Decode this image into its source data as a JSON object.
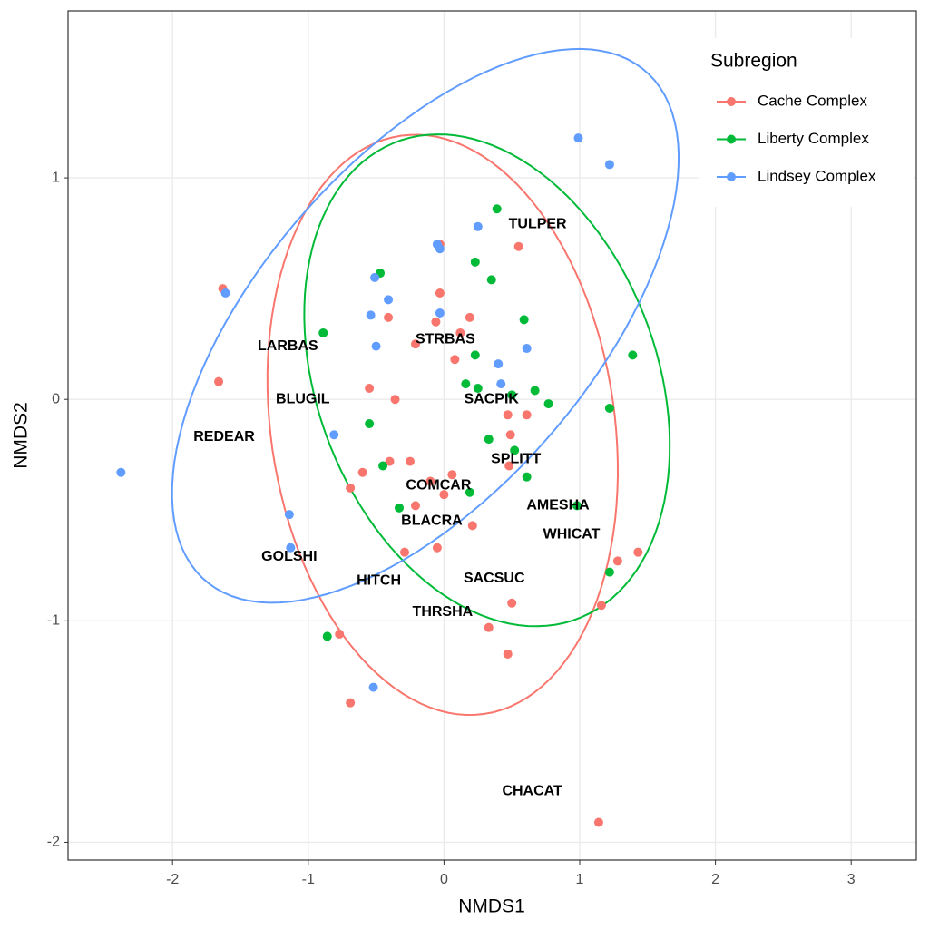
{
  "chart_data": {
    "type": "scatter",
    "x_label": "NMDS1",
    "y_label": "NMDS2",
    "xlim": [
      -2.77,
      3.48
    ],
    "ylim": [
      -2.08,
      1.754
    ],
    "xticks": [
      -2,
      -1,
      0,
      1,
      2,
      3
    ],
    "yticks": [
      -2,
      -1,
      0,
      1
    ],
    "grid": true,
    "legend": "top-right",
    "legend_title": "Subregion",
    "series": [
      {
        "name": "Cache Complex",
        "color": "#F8766D",
        "x": [
          -1.63,
          -1.66,
          -0.03,
          0.55,
          -0.03,
          -0.41,
          0.19,
          -0.06,
          -0.21,
          0.12,
          0.08,
          -0.55,
          -0.36,
          0.47,
          0.61,
          0.49,
          -0.6,
          -0.4,
          -0.25,
          0.06,
          0.48,
          -0.69,
          -0.1,
          0.0,
          -0.21,
          0.21,
          -0.29,
          -0.05,
          1.28,
          1.43,
          0.5,
          1.16,
          -0.77,
          0.33,
          0.47,
          -0.69,
          1.14
        ],
        "y": [
          0.5,
          0.08,
          0.7,
          0.69,
          0.48,
          0.37,
          0.37,
          0.35,
          0.25,
          0.3,
          0.18,
          0.05,
          0.0,
          -0.07,
          -0.07,
          -0.16,
          -0.33,
          -0.28,
          -0.28,
          -0.34,
          -0.3,
          -0.4,
          -0.37,
          -0.43,
          -0.48,
          -0.57,
          -0.69,
          -0.67,
          -0.73,
          -0.69,
          -0.92,
          -0.93,
          -1.06,
          -1.03,
          -1.15,
          -1.37,
          -1.91
        ],
        "ellipse": {
          "center": [
            -0.01,
            -0.115
          ],
          "radii": [
            1.398,
            1.195
          ],
          "angle": -47.7
        }
      },
      {
        "name": "Liberty Complex",
        "color": "#00BA38",
        "x": [
          0.39,
          0.23,
          -0.47,
          0.35,
          -0.89,
          0.59,
          1.39,
          0.23,
          0.16,
          0.25,
          0.5,
          0.67,
          0.77,
          1.22,
          -0.55,
          0.33,
          0.52,
          -0.45,
          0.61,
          0.19,
          -0.33,
          0.98,
          1.22,
          -0.86
        ],
        "y": [
          0.86,
          0.62,
          0.57,
          0.54,
          0.3,
          0.36,
          0.2,
          0.2,
          0.07,
          0.05,
          0.02,
          0.04,
          -0.02,
          -0.04,
          -0.11,
          -0.18,
          -0.23,
          -0.3,
          -0.35,
          -0.42,
          -0.49,
          -0.48,
          -0.78,
          -1.07
        ],
        "ellipse": {
          "center": [
            0.317,
            0.086
          ],
          "radii": [
            1.42,
            1.015
          ],
          "angle": -27
        }
      },
      {
        "name": "Lindsey Complex",
        "color": "#619CFF",
        "x": [
          0.99,
          1.22,
          0.25,
          -0.05,
          -0.03,
          -0.51,
          -0.41,
          -0.54,
          -0.03,
          -1.61,
          -0.5,
          0.61,
          0.4,
          0.42,
          -0.81,
          -2.38,
          -1.14,
          -1.13,
          -0.52
        ],
        "y": [
          1.18,
          1.06,
          0.78,
          0.7,
          0.68,
          0.55,
          0.45,
          0.38,
          0.39,
          0.48,
          0.24,
          0.23,
          0.16,
          0.07,
          -0.16,
          -0.33,
          -0.52,
          -0.67,
          -1.3
        ],
        "ellipse": {
          "center": [
            -0.137,
            0.332
          ],
          "radii": [
            2.057,
            0.903
          ],
          "angle": 27.9
        }
      }
    ],
    "species": [
      {
        "label": "TULPER",
        "x": 0.69,
        "y": 0.79
      },
      {
        "label": "LARBAS",
        "x": -1.15,
        "y": 0.24
      },
      {
        "label": "STRBAS",
        "x": 0.01,
        "y": 0.27
      },
      {
        "label": "BLUGIL",
        "x": -1.04,
        "y": 0.0
      },
      {
        "label": "SACPIK",
        "x": 0.35,
        "y": 0.0
      },
      {
        "label": "REDEAR",
        "x": -1.62,
        "y": -0.17
      },
      {
        "label": "SPLITT",
        "x": 0.53,
        "y": -0.27
      },
      {
        "label": "COMCAR",
        "x": -0.04,
        "y": -0.39
      },
      {
        "label": "AMESHA",
        "x": 0.84,
        "y": -0.48
      },
      {
        "label": "BLACRA",
        "x": -0.09,
        "y": -0.55
      },
      {
        "label": "WHICAT",
        "x": 0.94,
        "y": -0.61
      },
      {
        "label": "GOLSHI",
        "x": -1.14,
        "y": -0.71
      },
      {
        "label": "HITCH",
        "x": -0.48,
        "y": -0.82
      },
      {
        "label": "SACSUC",
        "x": 0.37,
        "y": -0.81
      },
      {
        "label": "THRSHA",
        "x": -0.01,
        "y": -0.96
      },
      {
        "label": "CHACAT",
        "x": 0.65,
        "y": -1.77
      }
    ]
  }
}
